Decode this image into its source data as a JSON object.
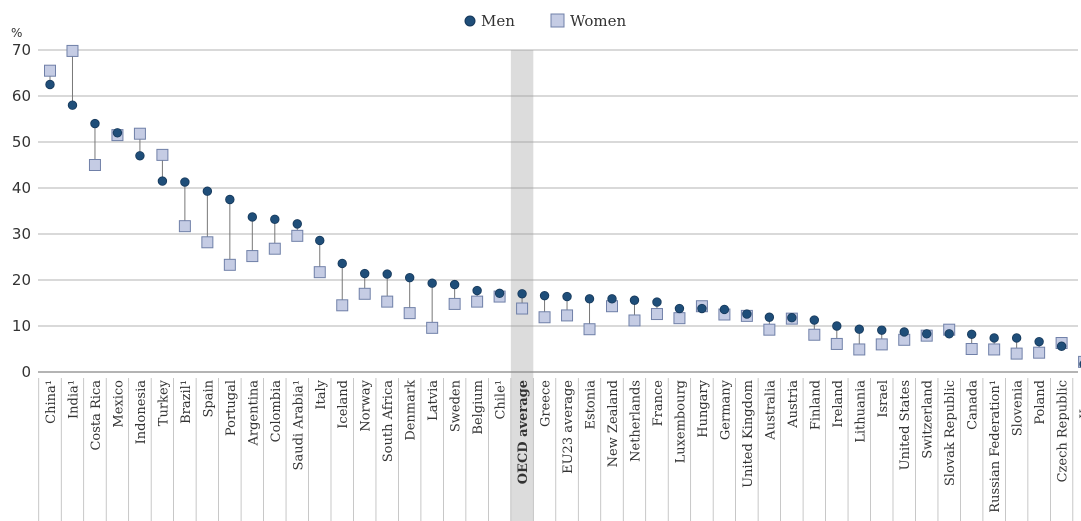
{
  "chart_data": {
    "type": "scatter",
    "ylabel": "%",
    "ylim": [
      0,
      70
    ],
    "yticks": [
      0,
      10,
      20,
      30,
      40,
      50,
      60,
      70
    ],
    "grid": "horizontal",
    "legend_position": "top-center",
    "highlight_category": "OECD average",
    "categories": [
      "China¹",
      "India¹",
      "Costa Rica",
      "Mexico",
      "Indonesia",
      "Turkey",
      "Brazil¹",
      "Spain",
      "Portugal",
      "Argentina",
      "Colombia",
      "Saudi Arabia¹",
      "Italy",
      "Iceland",
      "Norway",
      "South Africa",
      "Denmark",
      "Latvia",
      "Sweden",
      "Belgium",
      "Chile¹",
      "OECD average",
      "Greece",
      "EU23 average",
      "Estonia",
      "New Zealand",
      "Netherlands",
      "France",
      "Luxembourg",
      "Hungary",
      "Germany",
      "United Kingdom",
      "Australia",
      "Austria",
      "Finland",
      "Ireland",
      "Lithuania",
      "Israel",
      "United States",
      "Switzerland",
      "Slovak Republic",
      "Canada",
      "Russian Federation¹",
      "Slovenia",
      "Poland",
      "Czech Republic",
      "Korea"
    ],
    "series": [
      {
        "name": "Men",
        "marker": "circle",
        "color": "#1f4e79",
        "values": [
          62.5,
          58,
          54,
          52,
          47,
          41.5,
          41.3,
          39.3,
          37.5,
          33.7,
          33.2,
          32.2,
          28.6,
          23.6,
          21.4,
          21.3,
          20.5,
          19.3,
          19,
          17.7,
          17.1,
          17,
          16.6,
          16.4,
          15.9,
          15.9,
          15.6,
          15.2,
          13.8,
          13.8,
          13.6,
          12.6,
          11.9,
          11.8,
          11.3,
          10,
          9.3,
          9.1,
          8.7,
          8.3,
          8.3,
          8.2,
          7.4,
          7.4,
          6.6,
          5.6,
          1.7
        ]
      },
      {
        "name": "Women",
        "marker": "square",
        "color": "#c5cce4",
        "values": [
          65.5,
          69.8,
          45,
          51.5,
          51.8,
          47.2,
          31.7,
          28.2,
          23.3,
          25.2,
          26.8,
          29.6,
          21.7,
          14.5,
          17,
          15.3,
          12.8,
          9.6,
          14.8,
          15.3,
          16.4,
          13.8,
          11.9,
          12.3,
          9.3,
          14.3,
          11.2,
          12.6,
          11.7,
          14.3,
          12.5,
          12.2,
          9.2,
          11.6,
          8.1,
          6.1,
          4.9,
          6,
          7,
          7.9,
          9.2,
          5,
          4.9,
          4,
          4.2,
          6.3,
          2.2
        ]
      }
    ]
  }
}
